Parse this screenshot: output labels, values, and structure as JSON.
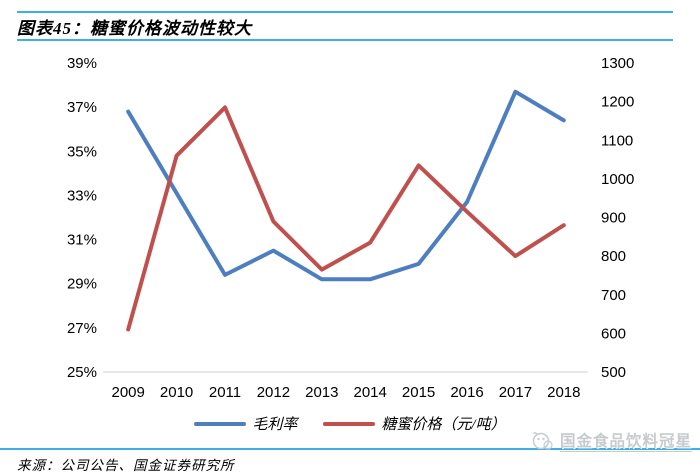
{
  "header": {
    "title": "图表45：糖蜜价格波动性较大"
  },
  "colors": {
    "accent_rule": "#3FB0E6",
    "margin_line": "#4D7EBF",
    "price_line": "#C0504D",
    "axis_line": "#D9D9D9",
    "watermark": "#C6CBCE"
  },
  "chart_data": {
    "type": "line",
    "title": "糖蜜价格波动性较大",
    "categories": [
      "2009",
      "2010",
      "2011",
      "2012",
      "2013",
      "2014",
      "2015",
      "2016",
      "2017",
      "2018"
    ],
    "series": [
      {
        "name": "毛利率",
        "axis": "left",
        "color": "#4D7EBF",
        "unit": "%",
        "values": [
          36.8,
          33.1,
          29.4,
          30.5,
          29.2,
          29.2,
          29.9,
          32.7,
          37.7,
          36.4
        ]
      },
      {
        "name": "糖蜜价格（元/吨）",
        "axis": "right",
        "color": "#C0504D",
        "unit": "元/吨",
        "values": [
          610,
          1060,
          1185,
          890,
          765,
          835,
          1035,
          915,
          800,
          880
        ]
      }
    ],
    "left_axis": {
      "min": 25,
      "max": 39,
      "step": 2,
      "suffix": "%",
      "ticks": [
        "39%",
        "37%",
        "35%",
        "33%",
        "31%",
        "29%",
        "27%",
        "25%"
      ]
    },
    "right_axis": {
      "min": 500,
      "max": 1300,
      "step": 100,
      "ticks": [
        "1300",
        "1200",
        "1100",
        "1000",
        "900",
        "800",
        "700",
        "600",
        "500"
      ]
    },
    "grid": false,
    "legend_position": "bottom"
  },
  "footer": {
    "source": "来源：公司公告、国金证券研究所",
    "watermark": "国金食品饮料冠星"
  }
}
